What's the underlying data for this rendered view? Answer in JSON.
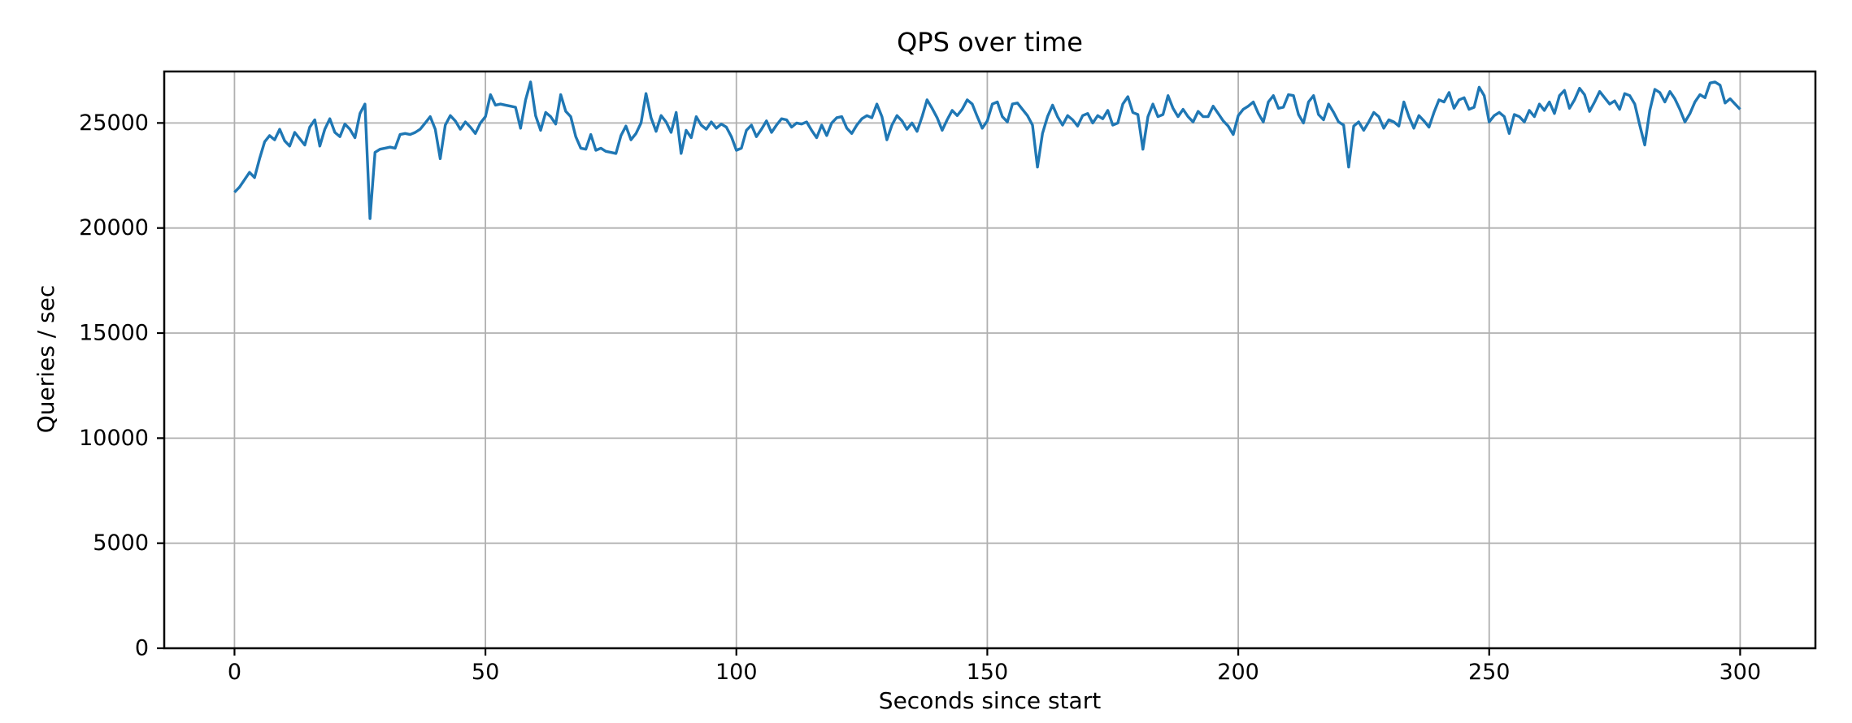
{
  "figure": {
    "background": "#ffffff"
  },
  "chart_data": {
    "type": "line",
    "title": "QPS over time",
    "xlabel": "Seconds since start",
    "ylabel": "Queries / sec",
    "grid": true,
    "legend": false,
    "xlim": [
      -14,
      315
    ],
    "ylim": [
      0,
      27450
    ],
    "x_ticks": [
      0,
      50,
      100,
      150,
      200,
      250,
      300
    ],
    "y_ticks": [
      0,
      5000,
      10000,
      15000,
      20000,
      25000
    ],
    "colors": {
      "line": "#1f77b4",
      "grid": "#b0b0b0",
      "spine": "#000000",
      "tick": "#000000"
    },
    "series": [
      {
        "name": "qps",
        "x_start": 0,
        "x_step": 1,
        "values": [
          21700,
          21950,
          22300,
          22650,
          22400,
          23300,
          24100,
          24400,
          24200,
          24700,
          24150,
          23900,
          24550,
          24250,
          23950,
          24800,
          25150,
          23900,
          24700,
          25200,
          24550,
          24350,
          24950,
          24700,
          24300,
          25450,
          25900,
          20450,
          23600,
          23750,
          23800,
          23850,
          23800,
          24450,
          24500,
          24450,
          24550,
          24700,
          25000,
          25300,
          24700,
          23300,
          24900,
          25350,
          25100,
          24700,
          25050,
          24800,
          24500,
          25000,
          25300,
          26350,
          25850,
          25900,
          25850,
          25800,
          25750,
          24750,
          26100,
          26950,
          25350,
          24650,
          25500,
          25300,
          24950,
          26350,
          25550,
          25300,
          24350,
          23800,
          23750,
          24450,
          23700,
          23800,
          23650,
          23600,
          23550,
          24400,
          24850,
          24200,
          24500,
          25000,
          26400,
          25250,
          24600,
          25350,
          25050,
          24550,
          25500,
          23550,
          24650,
          24300,
          25300,
          24900,
          24700,
          25050,
          24750,
          24950,
          24800,
          24350,
          23700,
          23800,
          24650,
          24900,
          24350,
          24700,
          25100,
          24550,
          24900,
          25200,
          25150,
          24800,
          25000,
          24950,
          25050,
          24650,
          24300,
          24900,
          24400,
          25000,
          25250,
          25300,
          24750,
          24500,
          24900,
          25200,
          25350,
          25250,
          25900,
          25300,
          24200,
          24900,
          25350,
          25100,
          24700,
          25000,
          24600,
          25300,
          26100,
          25700,
          25250,
          24650,
          25150,
          25600,
          25350,
          25650,
          26100,
          25900,
          25300,
          24750,
          25100,
          25900,
          26000,
          25300,
          25050,
          25900,
          25950,
          25650,
          25350,
          24900,
          22900,
          24500,
          25300,
          25850,
          25300,
          24900,
          25350,
          25150,
          24850,
          25350,
          25450,
          25000,
          25350,
          25200,
          25600,
          24900,
          25000,
          25900,
          26250,
          25500,
          25400,
          23750,
          25300,
          25900,
          25300,
          25400,
          26300,
          25700,
          25300,
          25650,
          25300,
          25050,
          25550,
          25300,
          25300,
          25800,
          25450,
          25100,
          24850,
          24450,
          25350,
          25650,
          25800,
          26000,
          25450,
          25050,
          26000,
          26300,
          25700,
          25750,
          26350,
          26300,
          25400,
          25000,
          26000,
          26300,
          25400,
          25150,
          25900,
          25500,
          25050,
          24900,
          22900,
          24850,
          25050,
          24650,
          25050,
          25500,
          25300,
          24750,
          25150,
          25050,
          24850,
          26000,
          25300,
          24750,
          25350,
          25100,
          24800,
          25500,
          26100,
          26000,
          26450,
          25700,
          26100,
          26200,
          25650,
          25750,
          26700,
          26300,
          25050,
          25350,
          25500,
          25300,
          24500,
          25400,
          25300,
          25050,
          25600,
          25300,
          25900,
          25600,
          26000,
          25450,
          26300,
          26550,
          25700,
          26100,
          26650,
          26350,
          25550,
          26000,
          26500,
          26200,
          25900,
          26050,
          25650,
          26400,
          26300,
          25900,
          24900,
          23950,
          25600,
          26600,
          26450,
          26000,
          26500,
          26150,
          25650,
          25050,
          25450,
          26000,
          26350,
          26200,
          26900,
          26950,
          26800,
          25950,
          26150,
          25900,
          25650
        ]
      }
    ]
  }
}
